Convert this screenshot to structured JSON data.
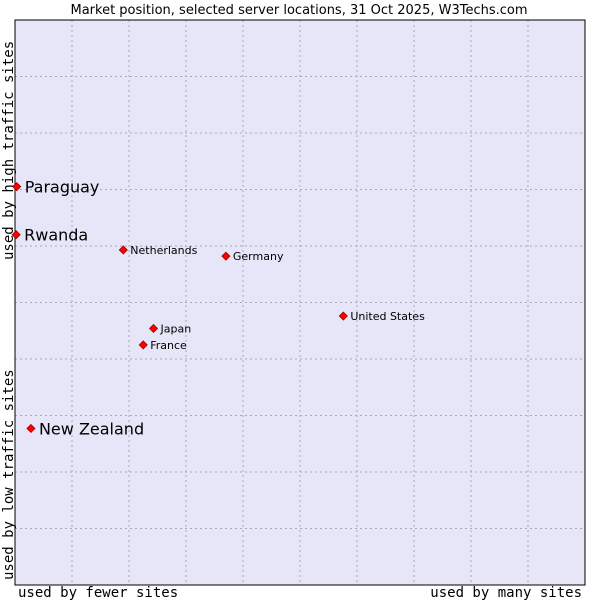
{
  "chart_data": {
    "type": "scatter",
    "title": "Market position, selected server locations, 31 Oct 2025, W3Techs.com",
    "xlabel_left": "used by fewer sites",
    "xlabel_right": "used by many sites",
    "ylabel_bottom": "used by low traffic sites",
    "ylabel_top": "used by high traffic sites",
    "xlim": [
      0,
      100
    ],
    "ylim": [
      0,
      100
    ],
    "grid": true,
    "colors": {
      "plot_background": "#e6e6f8",
      "grid": "#a8a8c0",
      "marker": "#ff0000",
      "marker_stroke": "#a00000"
    },
    "points": [
      {
        "label": "Paraguay",
        "x": 0.3,
        "y": 70.5,
        "emphasis": "large"
      },
      {
        "label": "Rwanda",
        "x": 0.2,
        "y": 62.0,
        "emphasis": "large"
      },
      {
        "label": "Netherlands",
        "x": 19.0,
        "y": 59.3,
        "emphasis": "small"
      },
      {
        "label": "Germany",
        "x": 37.0,
        "y": 58.2,
        "emphasis": "small"
      },
      {
        "label": "United States",
        "x": 57.6,
        "y": 47.6,
        "emphasis": "small"
      },
      {
        "label": "Japan",
        "x": 24.3,
        "y": 45.4,
        "emphasis": "small"
      },
      {
        "label": "France",
        "x": 22.5,
        "y": 42.5,
        "emphasis": "small"
      },
      {
        "label": "New Zealand",
        "x": 2.8,
        "y": 27.7,
        "emphasis": "large"
      }
    ]
  }
}
